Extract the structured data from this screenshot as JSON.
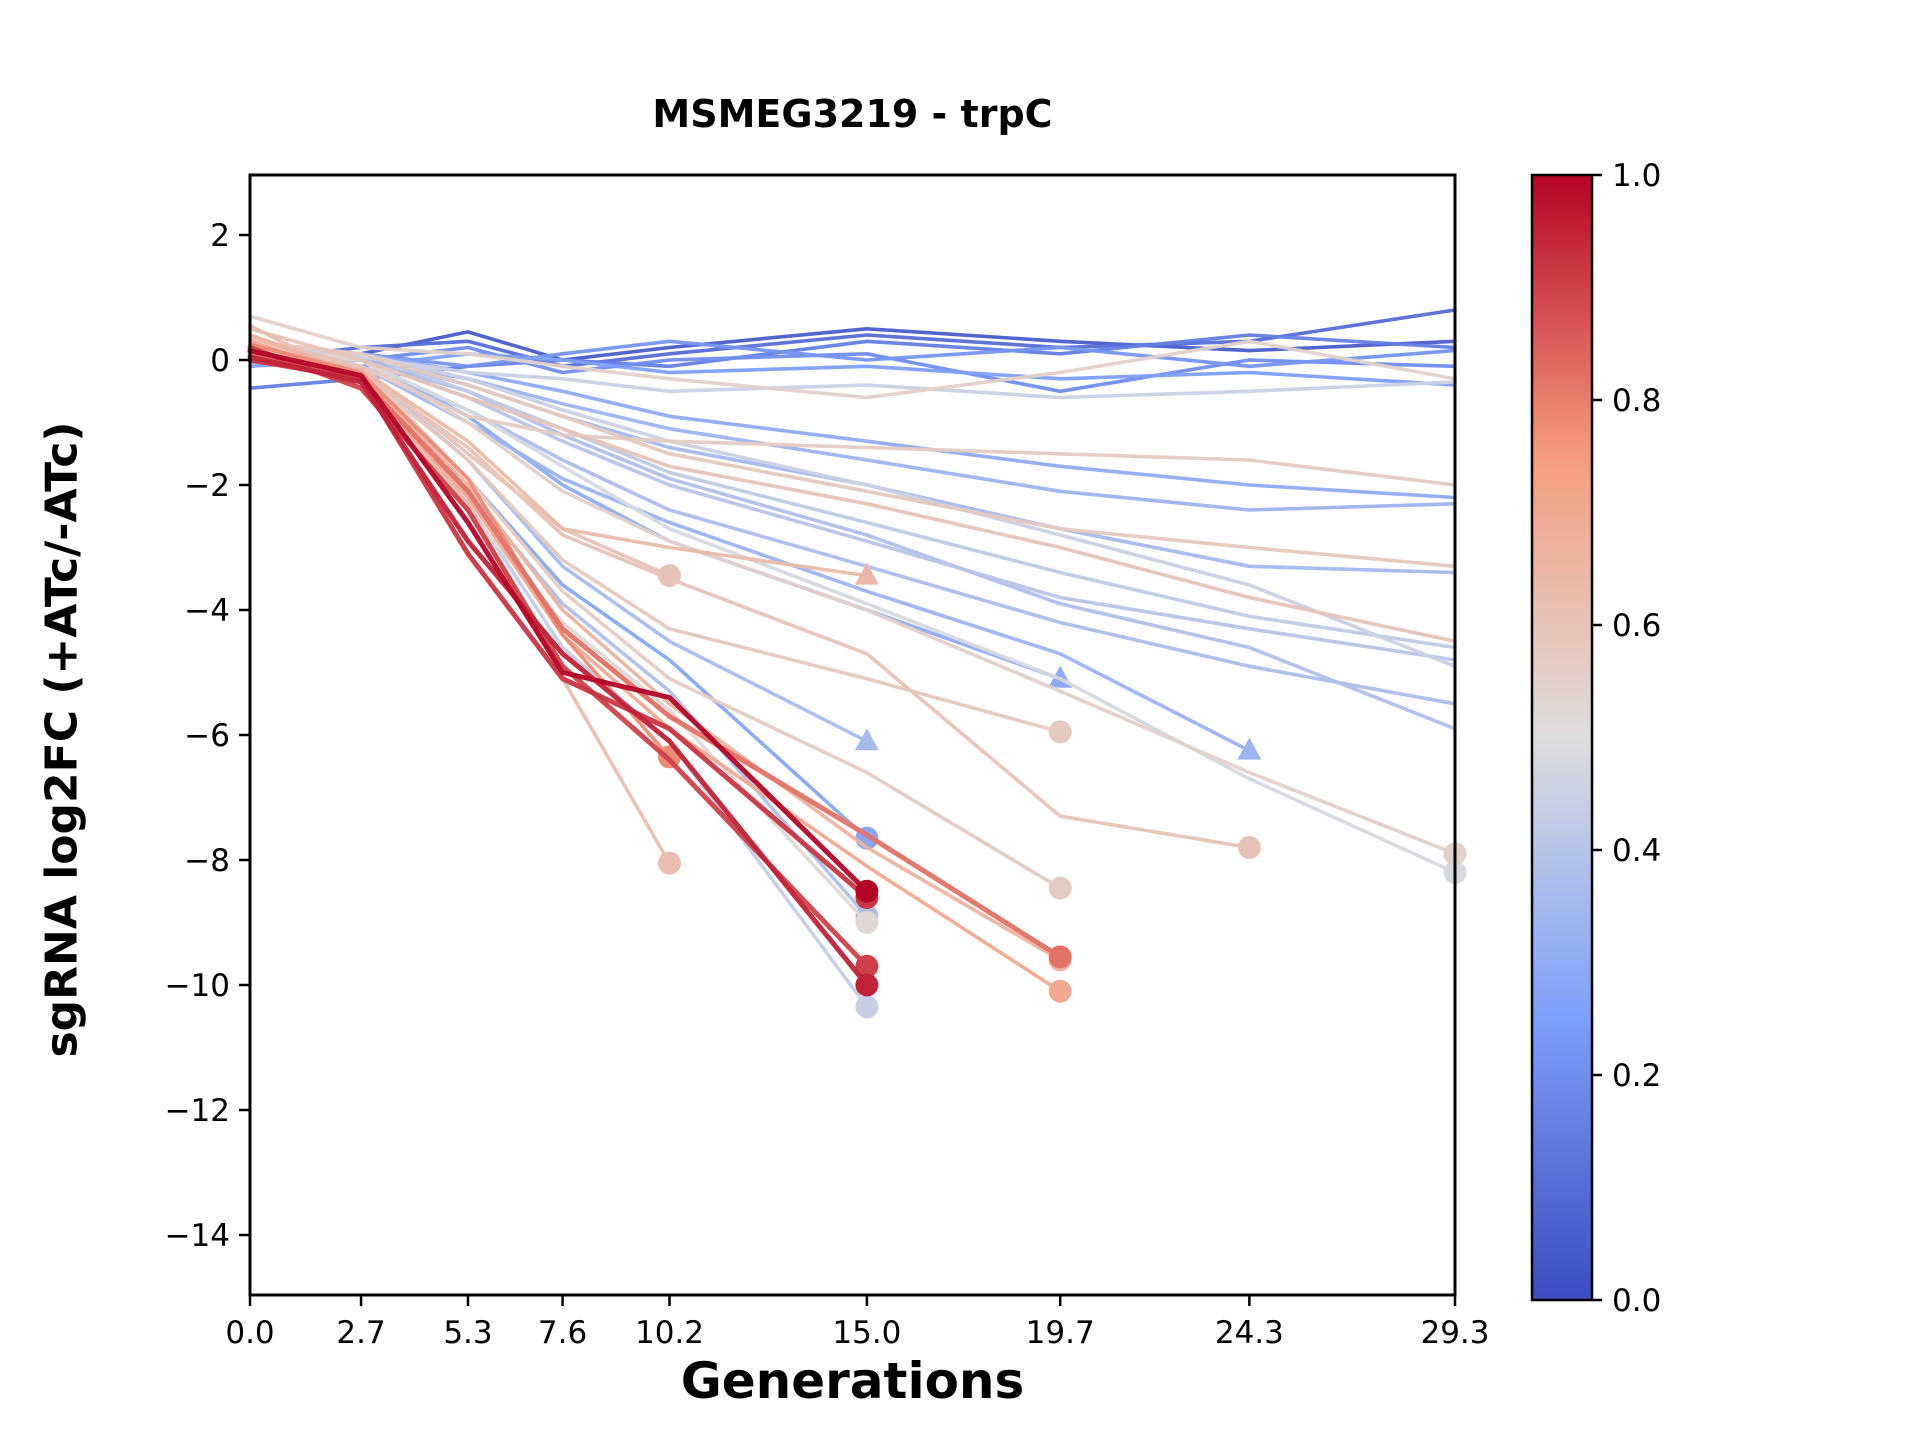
{
  "chart_data": {
    "type": "line",
    "title": "MSMEG3219 - trpC",
    "xlabel": "Generations",
    "ylabel": "sgRNA log2FC (+ATc/-ATc)",
    "xlim": [
      0,
      29.3
    ],
    "ylim": [
      -14.96,
      2.96
    ],
    "x_ticks": [
      0.0,
      2.7,
      5.3,
      7.6,
      10.2,
      15.0,
      19.7,
      24.3,
      29.3
    ],
    "x_tick_labels": [
      "0.0",
      "2.7",
      "5.3",
      "7.6",
      "10.2",
      "15.0",
      "19.7",
      "24.3",
      "29.3"
    ],
    "y_ticks": [
      2,
      0,
      -2,
      -4,
      -6,
      -8,
      -10,
      -12,
      -14
    ],
    "y_tick_labels": [
      "2",
      "0",
      "−2",
      "−4",
      "−6",
      "−8",
      "−10",
      "−12",
      "−14"
    ],
    "colorbar": {
      "cmap": "coolwarm",
      "ticks": [
        0.0,
        0.2,
        0.4,
        0.6,
        0.8,
        1.0
      ],
      "tick_labels": [
        "0.0",
        "0.2",
        "0.4",
        "0.6",
        "0.8",
        "1.0"
      ],
      "cmap_stops": [
        [
          0.0,
          "#3b4cc0"
        ],
        [
          0.25,
          "#7c9ff9"
        ],
        [
          0.5,
          "#dddddd"
        ],
        [
          0.75,
          "#f59c7d"
        ],
        [
          1.0,
          "#b40426"
        ]
      ]
    },
    "x_grid": [
      0,
      2.7,
      5.3,
      7.6,
      10.2,
      15.0,
      19.7,
      24.3,
      29.3
    ],
    "series": [
      {
        "c": 1.0,
        "x": [
          0,
          2.7,
          5.3,
          7.6,
          10.2,
          15.0
        ],
        "y": [
          0.15,
          -0.25,
          -2.6,
          -5.0,
          -5.4,
          -8.5
        ],
        "end": "circle"
      },
      {
        "c": 0.95,
        "x": [
          0,
          2.7,
          5.3,
          7.6,
          10.2,
          15.0
        ],
        "y": [
          0.05,
          -0.35,
          -2.9,
          -4.7,
          -6.1,
          -10.0
        ],
        "end": "circle"
      },
      {
        "c": 0.9,
        "x": [
          0,
          2.7,
          5.3,
          7.6,
          10.2,
          15.0
        ],
        "y": [
          0.2,
          -0.45,
          -2.4,
          -4.9,
          -6.4,
          -9.7
        ],
        "end": "circle"
      },
      {
        "c": 0.92,
        "x": [
          0,
          2.7,
          5.3,
          7.6,
          10.2,
          15.0
        ],
        "y": [
          0.0,
          -0.3,
          -3.1,
          -5.1,
          -5.9,
          -8.6
        ],
        "end": "circle"
      },
      {
        "c": 0.82,
        "x": [
          0,
          2.7,
          5.3,
          7.6,
          10.2,
          15.0,
          19.7
        ],
        "y": [
          0.1,
          -0.3,
          -2.1,
          -4.3,
          -5.7,
          -7.6,
          -9.55
        ],
        "end": "circle"
      },
      {
        "c": 0.78,
        "x": [
          0,
          2.7,
          5.3,
          7.6,
          10.2
        ],
        "y": [
          0.25,
          -0.2,
          -1.9,
          -4.4,
          -6.35
        ],
        "end": "circle"
      },
      {
        "c": 0.62,
        "x": [
          0,
          2.7,
          5.3,
          7.6,
          10.2
        ],
        "y": [
          0.55,
          -0.35,
          -2.3,
          -5.1,
          -8.05
        ],
        "end": "circle"
      },
      {
        "c": 0.6,
        "x": [
          0,
          2.7,
          5.3,
          7.6,
          10.2
        ],
        "y": [
          0.35,
          -0.1,
          -1.5,
          -2.7,
          -3.45
        ],
        "end": "circle"
      },
      {
        "c": 0.64,
        "x": [
          0,
          2.7,
          5.3,
          7.6,
          10.2,
          15.0
        ],
        "y": [
          0.2,
          -0.15,
          -1.3,
          -2.7,
          -3.0,
          -3.45
        ],
        "end": "triangle"
      },
      {
        "c": 0.58,
        "x": [
          0,
          2.7,
          5.3,
          7.6,
          10.2,
          15.0,
          19.7
        ],
        "y": [
          0.3,
          -0.2,
          -1.6,
          -3.2,
          -4.3,
          -5.1,
          -5.95
        ],
        "end": "circle"
      },
      {
        "c": 0.57,
        "x": [
          0,
          2.7,
          5.3,
          7.6,
          10.2,
          15.0,
          19.7
        ],
        "y": [
          0.2,
          -0.1,
          -1.9,
          -3.7,
          -5.1,
          -6.6,
          -8.45
        ],
        "end": "circle"
      },
      {
        "c": 0.7,
        "x": [
          0,
          2.7,
          5.3,
          7.6,
          10.2,
          15.0,
          19.7
        ],
        "y": [
          0.3,
          -0.3,
          -2.2,
          -4.4,
          -5.9,
          -8.1,
          -10.1
        ],
        "end": "circle"
      },
      {
        "c": 0.66,
        "x": [
          0,
          2.7,
          5.3,
          7.6,
          10.2,
          15.0,
          19.7
        ],
        "y": [
          0.4,
          -0.25,
          -2.0,
          -4.0,
          -5.5,
          -7.8,
          -9.6
        ],
        "end": "circle"
      },
      {
        "c": 0.6,
        "x": [
          0,
          2.7,
          5.3,
          7.6,
          10.2,
          15.0,
          19.7,
          24.3
        ],
        "y": [
          0.4,
          -0.2,
          -1.4,
          -2.8,
          -3.5,
          -4.7,
          -7.3,
          -7.8
        ],
        "end": "circle"
      },
      {
        "c": 0.55,
        "x": [
          0,
          2.7,
          5.3,
          7.6,
          10.2,
          15.0,
          19.7,
          24.3,
          29.3
        ],
        "y": [
          0.25,
          0.0,
          -1.0,
          -2.1,
          -2.9,
          -4.0,
          -5.3,
          -6.6,
          -7.9
        ],
        "end": "circle"
      },
      {
        "c": 0.48,
        "x": [
          0,
          2.7,
          5.3,
          7.6,
          10.2,
          15.0,
          19.7,
          24.3,
          29.3
        ],
        "y": [
          0.1,
          0.0,
          -0.8,
          -1.7,
          -2.7,
          -3.9,
          -5.1,
          -6.7,
          -8.2
        ],
        "end": "circle"
      },
      {
        "c": 0.33,
        "x": [
          0,
          2.7,
          5.3,
          7.6,
          10.2,
          15.0,
          19.7,
          24.3
        ],
        "y": [
          0.0,
          -0.1,
          -1.0,
          -1.9,
          -2.6,
          -3.7,
          -4.7,
          -6.25
        ],
        "end": "triangle"
      },
      {
        "c": 0.36,
        "x": [
          0,
          2.7,
          5.3,
          7.6,
          10.2,
          15.0
        ],
        "y": [
          0.0,
          -0.15,
          -1.6,
          -3.3,
          -4.5,
          -6.1
        ],
        "end": "triangle"
      },
      {
        "c": 0.3,
        "x": [
          0,
          2.7,
          5.3,
          7.6,
          10.2,
          15.0,
          19.7
        ],
        "y": [
          -0.1,
          0.0,
          -0.9,
          -2.0,
          -2.9,
          -4.0,
          -5.1
        ],
        "end": "triangle"
      },
      {
        "c": 0.28,
        "x": [
          0,
          2.7,
          5.3,
          7.6,
          10.2,
          15.0
        ],
        "y": [
          0.05,
          -0.2,
          -1.9,
          -3.6,
          -4.8,
          -7.65
        ],
        "end": "circle"
      },
      {
        "c": 0.38,
        "x": [
          0,
          2.7,
          5.3,
          7.6,
          10.2,
          15.0
        ],
        "y": [
          0.1,
          -0.15,
          -2.1,
          -3.9,
          -5.3,
          -8.9
        ],
        "end": "circle"
      },
      {
        "c": 0.44,
        "x": [
          0,
          2.7,
          5.3,
          7.6,
          10.2,
          15.0
        ],
        "y": [
          0.15,
          -0.25,
          -2.3,
          -4.6,
          -6.1,
          -10.35
        ],
        "end": "circle"
      },
      {
        "c": 0.52,
        "x": [
          0,
          2.7,
          5.3,
          7.6,
          10.2,
          15.0
        ],
        "y": [
          0.2,
          -0.2,
          -2.4,
          -4.2,
          -5.6,
          -9.0
        ],
        "end": "circle"
      },
      {
        "c": 0.4,
        "x": [
          0,
          2.7,
          5.3,
          7.6,
          10.2,
          15.0,
          19.7,
          24.3,
          29.3
        ],
        "y": [
          0.1,
          0.0,
          -0.6,
          -1.3,
          -2.0,
          -2.9,
          -3.8,
          -4.3,
          -4.8
        ],
        "end": null
      },
      {
        "c": 0.37,
        "x": [
          0,
          2.7,
          5.3,
          7.6,
          10.2,
          15.0,
          19.7,
          24.3,
          29.3
        ],
        "y": [
          0.0,
          -0.1,
          -0.8,
          -1.6,
          -2.4,
          -3.3,
          -4.2,
          -4.9,
          -5.5
        ],
        "end": null
      },
      {
        "c": 0.42,
        "x": [
          0,
          2.7,
          5.3,
          7.6,
          10.2,
          15.0,
          19.7,
          24.3,
          29.3
        ],
        "y": [
          0.2,
          0.1,
          -0.5,
          -1.1,
          -1.8,
          -2.6,
          -3.4,
          -4.1,
          -4.6
        ],
        "end": null
      },
      {
        "c": 0.35,
        "x": [
          0,
          2.7,
          5.3,
          7.6,
          10.2,
          15.0,
          19.7,
          24.3,
          29.3
        ],
        "y": [
          0.0,
          0.05,
          -0.4,
          -0.9,
          -1.4,
          -2.0,
          -2.7,
          -3.3,
          -3.4
        ],
        "end": null
      },
      {
        "c": 0.33,
        "x": [
          0,
          2.7,
          5.3,
          7.6,
          10.2,
          15.0,
          19.7,
          24.3,
          29.3
        ],
        "y": [
          -0.05,
          0.0,
          -0.3,
          -0.7,
          -1.1,
          -1.6,
          -2.1,
          -2.4,
          -2.3
        ],
        "end": null
      },
      {
        "c": 0.3,
        "x": [
          0,
          2.7,
          5.3,
          7.6,
          10.2,
          15.0,
          19.7,
          24.3,
          29.3
        ],
        "y": [
          0.05,
          0.1,
          -0.2,
          -0.5,
          -0.9,
          -1.3,
          -1.7,
          -2.0,
          -2.2
        ],
        "end": null
      },
      {
        "c": 0.38,
        "x": [
          0,
          2.7,
          5.3,
          7.6,
          10.2,
          15.0,
          19.7,
          24.3,
          29.3
        ],
        "y": [
          0.1,
          0.0,
          -0.5,
          -1.2,
          -1.9,
          -2.8,
          -3.9,
          -4.6,
          -5.9
        ],
        "end": null
      },
      {
        "c": 0.45,
        "x": [
          0,
          2.7,
          5.3,
          7.6,
          10.2,
          15.0,
          19.7,
          24.3,
          29.3
        ],
        "y": [
          0.2,
          0.1,
          -0.3,
          -0.8,
          -1.3,
          -2.0,
          -2.8,
          -3.6,
          -4.9
        ],
        "end": null
      },
      {
        "c": 0.58,
        "x": [
          0,
          2.7,
          5.3,
          7.6,
          10.2,
          15.0,
          19.7,
          24.3,
          29.3
        ],
        "y": [
          0.3,
          0.1,
          -0.4,
          -0.9,
          -1.5,
          -2.1,
          -2.7,
          -3.0,
          -3.3
        ],
        "end": null
      },
      {
        "c": 0.55,
        "x": [
          0,
          2.7,
          5.3,
          7.6,
          10.2,
          15.0,
          19.7,
          24.3,
          29.3
        ],
        "y": [
          0.7,
          0.2,
          0.1,
          -0.1,
          -0.3,
          -0.6,
          -0.2,
          0.3,
          -0.3
        ],
        "end": null
      },
      {
        "c": 0.1,
        "x": [
          0,
          2.7,
          5.3,
          7.6,
          10.2,
          15.0,
          19.7,
          24.3,
          29.3
        ],
        "y": [
          0.0,
          0.2,
          0.3,
          -0.1,
          0.1,
          0.4,
          0.2,
          0.3,
          0.8
        ],
        "end": null
      },
      {
        "c": 0.05,
        "x": [
          0,
          2.7,
          5.3,
          7.6,
          10.2,
          15.0,
          19.7,
          24.3,
          29.3
        ],
        "y": [
          -0.1,
          0.1,
          0.45,
          0.0,
          0.2,
          0.5,
          0.3,
          0.15,
          0.3
        ],
        "end": null
      },
      {
        "c": 0.15,
        "x": [
          0,
          2.7,
          5.3,
          7.6,
          10.2,
          15.0,
          19.7,
          24.3,
          29.3
        ],
        "y": [
          -0.45,
          -0.3,
          -0.1,
          0.0,
          -0.1,
          0.3,
          0.1,
          0.4,
          0.2
        ],
        "end": null
      },
      {
        "c": 0.2,
        "x": [
          0,
          2.7,
          5.3,
          7.6,
          10.2,
          15.0,
          19.7,
          24.3,
          29.3
        ],
        "y": [
          0.1,
          0.0,
          0.2,
          -0.2,
          0.0,
          0.1,
          -0.5,
          0.0,
          -0.1
        ],
        "end": null
      },
      {
        "c": 0.25,
        "x": [
          0,
          2.7,
          5.3,
          7.6,
          10.2,
          15.0,
          19.7,
          24.3,
          29.3
        ],
        "y": [
          0.0,
          -0.1,
          0.1,
          0.0,
          -0.2,
          -0.1,
          -0.3,
          -0.2,
          -0.4
        ],
        "end": null
      },
      {
        "c": 0.22,
        "x": [
          0,
          2.7,
          5.3,
          7.6,
          10.2,
          15.0,
          19.7,
          24.3,
          29.3
        ],
        "y": [
          0.2,
          0.1,
          -0.1,
          0.1,
          0.3,
          0.0,
          0.2,
          -0.1,
          0.15
        ],
        "end": null
      },
      {
        "c": 0.45,
        "x": [
          0,
          2.7,
          5.3,
          7.6,
          10.2,
          15.0,
          19.7,
          24.3,
          29.3
        ],
        "y": [
          0.1,
          0.05,
          -0.2,
          -0.3,
          -0.5,
          -0.4,
          -0.6,
          -0.5,
          -0.35
        ],
        "end": null
      },
      {
        "c": 0.6,
        "x": [
          0,
          2.7,
          5.3,
          7.6,
          10.2,
          15.0,
          19.7,
          24.3,
          29.3
        ],
        "y": [
          0.5,
          0.0,
          -0.6,
          -1.1,
          -1.7,
          -2.3,
          -3.0,
          -3.8,
          -4.5
        ],
        "end": null
      },
      {
        "c": 0.57,
        "x": [
          0,
          2.7,
          5.3,
          7.6,
          10.2,
          15.0,
          19.7,
          24.3,
          29.3
        ],
        "y": [
          0.2,
          -0.1,
          -0.9,
          -1.2,
          -1.3,
          -1.4,
          -1.5,
          -1.6,
          -2.0
        ],
        "end": null
      }
    ]
  }
}
